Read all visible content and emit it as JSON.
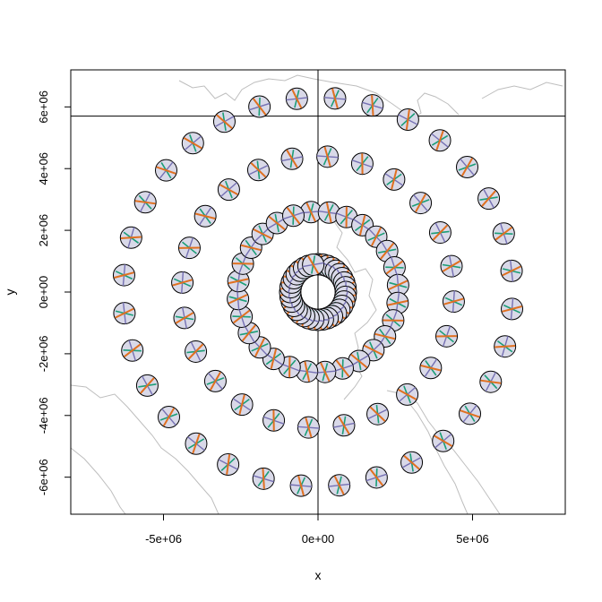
{
  "chart_data": {
    "type": "scatter",
    "xlabel": "x",
    "ylabel": "y",
    "xlim": [
      -8000000,
      8000000
    ],
    "ylim": [
      -7200000,
      7200000
    ],
    "x_ticks": [
      {
        "value": -5000000,
        "label": "-5e+06"
      },
      {
        "value": 0,
        "label": "0e+00"
      },
      {
        "value": 5000000,
        "label": "5e+06"
      }
    ],
    "y_ticks": [
      {
        "value": -6000000,
        "label": "-6e+06"
      },
      {
        "value": -4000000,
        "label": "-4e+06"
      },
      {
        "value": -2000000,
        "label": "-2e+06"
      },
      {
        "value": 0,
        "label": "0e+00"
      },
      {
        "value": 2000000,
        "label": "2e+06"
      },
      {
        "value": 4000000,
        "label": "4e+06"
      },
      {
        "value": 6000000,
        "label": "6e+06"
      }
    ],
    "reference_lines": {
      "vertical_x": 0,
      "horizontal_y": 5700000
    },
    "background": "gray coastline outlines (Antarctic-centred polar projection)",
    "glyph": "circular indicatrix with crossing colored axis lines",
    "rings": [
      {
        "radius": 900000,
        "count": 36,
        "start_angle_deg": 90
      },
      {
        "radius": 2600000,
        "count": 28,
        "start_angle_deg": 95
      },
      {
        "radius": 4400000,
        "count": 24,
        "start_angle_deg": 86
      },
      {
        "radius": 6300000,
        "count": 32,
        "start_angle_deg": 85
      }
    ],
    "colors": {
      "frame": "#000000",
      "coastline": "#bebebe",
      "glyph_fill": "#d9d9e8",
      "glyph_stroke": "#000000",
      "axis_orange": "#e07020",
      "axis_green": "#1b9e77",
      "axis_purple": "#7570b3"
    }
  }
}
